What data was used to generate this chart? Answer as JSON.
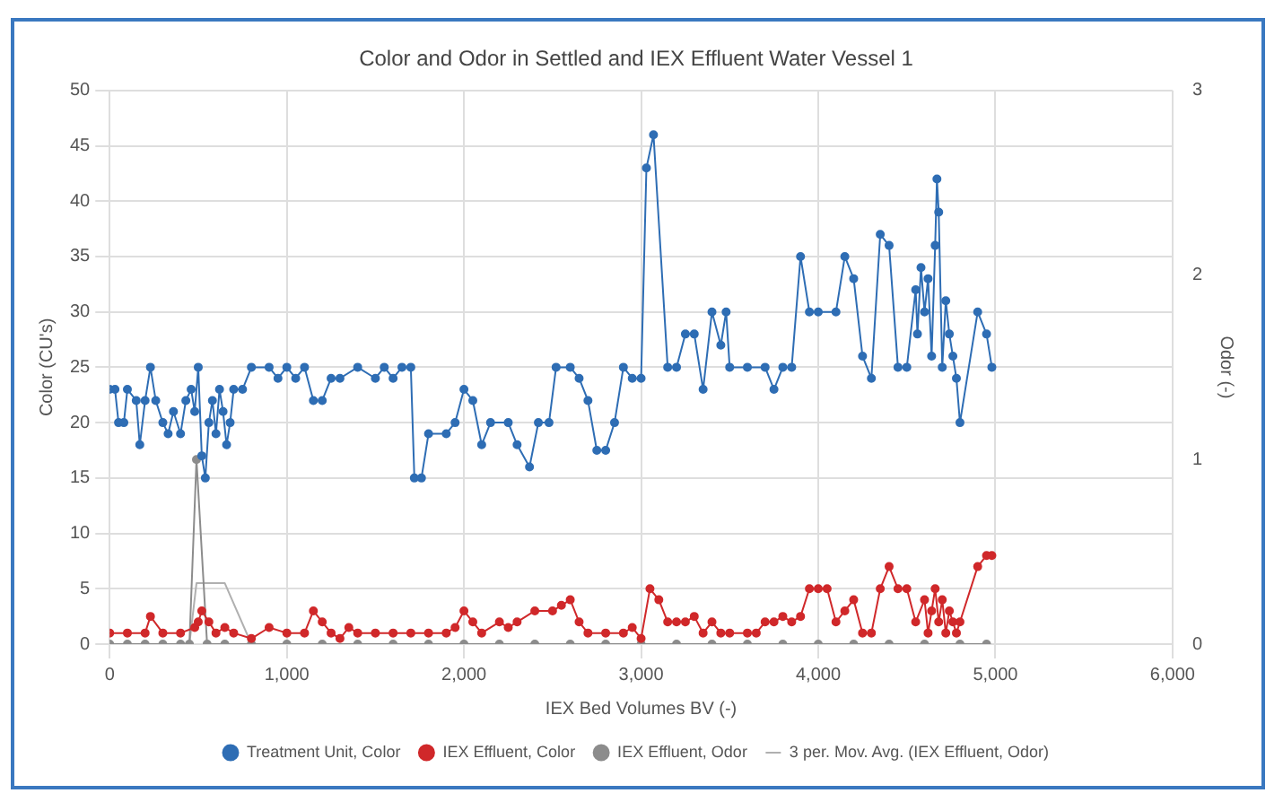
{
  "chart_data": {
    "type": "line",
    "title": "Color and Odor in Settled and IEX Effluent Water Vessel 1",
    "xlabel": "IEX Bed Volumes BV (-)",
    "ylabel": "Color (CU's)",
    "y2label": "Odor (-)",
    "xlim": [
      0,
      6000
    ],
    "xticks": [
      {
        "value": 0,
        "label": "0"
      },
      {
        "value": 1000,
        "label": "1,000"
      },
      {
        "value": 2000,
        "label": "2,000"
      },
      {
        "value": 3000,
        "label": "3,000"
      },
      {
        "value": 4000,
        "label": "4,000"
      },
      {
        "value": 5000,
        "label": "5,000"
      },
      {
        "value": 6000,
        "label": "6,000"
      }
    ],
    "ylim": [
      0,
      50
    ],
    "yticks": [
      0,
      5,
      10,
      15,
      20,
      25,
      30,
      35,
      40,
      45,
      50
    ],
    "y2lim": [
      0,
      3
    ],
    "y2ticks": [
      0,
      1,
      2,
      3
    ],
    "grid": true,
    "legend": "bottom",
    "marker": "circle",
    "series": [
      {
        "name": "Treatment Unit, Color",
        "color": "#2e6db4",
        "x": [
          0,
          30,
          50,
          80,
          100,
          150,
          170,
          200,
          230,
          260,
          300,
          330,
          360,
          400,
          430,
          460,
          480,
          500,
          520,
          540,
          560,
          580,
          600,
          620,
          640,
          660,
          680,
          700,
          750,
          800,
          900,
          950,
          1000,
          1050,
          1100,
          1150,
          1200,
          1250,
          1300,
          1400,
          1500,
          1550,
          1600,
          1650,
          1700,
          1720,
          1760,
          1800,
          1900,
          1950,
          2000,
          2050,
          2100,
          2150,
          2250,
          2300,
          2370,
          2420,
          2480,
          2520,
          2600,
          2650,
          2700,
          2750,
          2800,
          2850,
          2900,
          2950,
          3000,
          3030,
          3070,
          3150,
          3200,
          3250,
          3300,
          3350,
          3400,
          3450,
          3480,
          3500,
          3600,
          3700,
          3750,
          3800,
          3850,
          3900,
          3950,
          4000,
          4100,
          4150,
          4200,
          4250,
          4300,
          4350,
          4400,
          4450,
          4500,
          4550,
          4560,
          4580,
          4600,
          4620,
          4640,
          4660,
          4670,
          4680,
          4700,
          4720,
          4740,
          4760,
          4780,
          4800,
          4900,
          4950,
          4980
        ],
        "values": [
          23,
          23,
          20,
          20,
          23,
          22,
          18,
          22,
          25,
          22,
          20,
          19,
          21,
          19,
          22,
          23,
          21,
          25,
          17,
          15,
          20,
          22,
          19,
          23,
          21,
          18,
          20,
          23,
          23,
          25,
          25,
          24,
          25,
          24,
          25,
          22,
          22,
          24,
          24,
          25,
          24,
          25,
          24,
          25,
          25,
          15,
          15,
          19,
          19,
          20,
          23,
          22,
          18,
          20,
          20,
          18,
          16,
          20,
          20,
          25,
          25,
          24,
          22,
          17.5,
          17.5,
          20,
          25,
          24,
          24,
          43,
          46,
          25,
          25,
          28,
          28,
          23,
          30,
          27,
          30,
          25,
          25,
          25,
          23,
          25,
          25,
          35,
          30,
          30,
          30,
          35,
          33,
          26,
          24,
          37,
          36,
          25,
          25,
          32,
          28,
          34,
          30,
          33,
          26,
          36,
          42,
          39,
          25,
          31,
          28,
          26,
          24,
          20,
          30,
          28,
          25
        ]
      },
      {
        "name": "IEX Effluent, Color",
        "color": "#d0282a",
        "x": [
          0,
          100,
          200,
          230,
          300,
          400,
          480,
          500,
          520,
          560,
          600,
          650,
          700,
          800,
          900,
          1000,
          1100,
          1150,
          1200,
          1250,
          1300,
          1350,
          1400,
          1500,
          1600,
          1700,
          1800,
          1900,
          1950,
          2000,
          2050,
          2100,
          2200,
          2250,
          2300,
          2400,
          2500,
          2550,
          2600,
          2650,
          2700,
          2800,
          2900,
          2950,
          3000,
          3050,
          3100,
          3150,
          3200,
          3250,
          3300,
          3350,
          3400,
          3450,
          3500,
          3600,
          3650,
          3700,
          3750,
          3800,
          3850,
          3900,
          3950,
          4000,
          4050,
          4100,
          4150,
          4200,
          4250,
          4300,
          4350,
          4400,
          4450,
          4500,
          4550,
          4600,
          4620,
          4640,
          4660,
          4680,
          4700,
          4720,
          4740,
          4760,
          4780,
          4800,
          4900,
          4950,
          4980
        ],
        "values": [
          1,
          1,
          1,
          2.5,
          1,
          1,
          1.5,
          2,
          3,
          2,
          1,
          1.5,
          1,
          0.5,
          1.5,
          1,
          1,
          3,
          2,
          1,
          0.5,
          1.5,
          1,
          1,
          1,
          1,
          1,
          1,
          1.5,
          3,
          2,
          1,
          2,
          1.5,
          2,
          3,
          3,
          3.5,
          4,
          2,
          1,
          1,
          1,
          1.5,
          0.5,
          5,
          4,
          2,
          2,
          2,
          2.5,
          1,
          2,
          1,
          1,
          1,
          1,
          2,
          2,
          2.5,
          2,
          2.5,
          5,
          5,
          5,
          2,
          3,
          4,
          1,
          1,
          5,
          7,
          5,
          5,
          2,
          4,
          1,
          3,
          5,
          2,
          4,
          1,
          3,
          2,
          1,
          2,
          7,
          8,
          8
        ]
      },
      {
        "name": "IEX Effluent, Odor",
        "color": "#8c8c8c",
        "axis": "y2",
        "x": [
          0,
          100,
          200,
          300,
          400,
          450,
          490,
          550,
          650,
          800,
          1000,
          1200,
          1400,
          1600,
          1800,
          2000,
          2200,
          2400,
          2600,
          2800,
          3000,
          3200,
          3400,
          3600,
          3800,
          4000,
          4200,
          4400,
          4600,
          4800,
          4950
        ],
        "values": [
          0,
          0,
          0,
          0,
          0,
          0,
          1,
          0,
          0,
          0,
          0,
          0,
          0,
          0,
          0,
          0,
          0,
          0,
          0,
          0,
          0,
          0,
          0,
          0,
          0,
          0,
          0,
          0,
          0,
          0,
          0
        ]
      },
      {
        "name": "3 per. Mov. Avg. (IEX Effluent, Odor)",
        "color": "#b0b0b0",
        "marker": "none",
        "axis": "y2",
        "x": [
          200,
          300,
          400,
          450,
          490,
          550,
          650,
          800,
          1000,
          1200,
          1400,
          1600,
          1800,
          2000,
          2200,
          2400,
          2600,
          2800,
          3000,
          3200,
          3400,
          3600,
          3800,
          4000,
          4200,
          4400,
          4600,
          4800,
          4950
        ],
        "values": [
          0,
          0,
          0,
          0,
          0.33,
          0.33,
          0.33,
          0,
          0,
          0,
          0,
          0,
          0,
          0,
          0,
          0,
          0,
          0,
          0,
          0,
          0,
          0,
          0,
          0,
          0,
          0,
          0,
          0,
          0
        ]
      }
    ]
  }
}
